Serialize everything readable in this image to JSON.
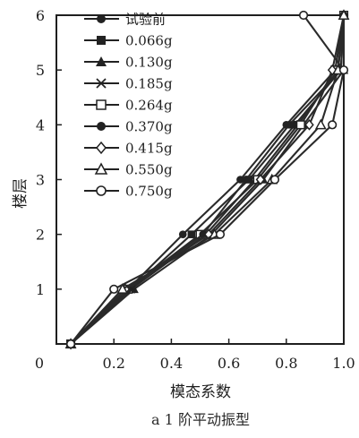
{
  "chart_data": {
    "type": "line",
    "title": "",
    "caption": "a 1 阶平动振型",
    "xlabel": "模态系数",
    "ylabel": "楼层",
    "xlim": [
      0,
      1.0
    ],
    "ylim": [
      0,
      6
    ],
    "xticks": [
      "0",
      "0.2",
      "0.4",
      "0.6",
      "0.8",
      "1.0"
    ],
    "yticks": [
      "1",
      "2",
      "3",
      "4",
      "5",
      "6"
    ],
    "legend_position": "top-left",
    "grid": false,
    "series": [
      {
        "name": "试验前",
        "marker": "filled-circle",
        "x": [
          0.05,
          0.25,
          0.44,
          0.64,
          0.8,
          0.97,
          1.0
        ],
        "y": [
          0,
          1,
          2,
          3,
          4,
          5,
          6
        ]
      },
      {
        "name": "0.066g",
        "marker": "filled-square",
        "x": [
          0.05,
          0.26,
          0.47,
          0.67,
          0.83,
          0.99,
          1.0
        ],
        "y": [
          0,
          1,
          2,
          3,
          4,
          5,
          6
        ]
      },
      {
        "name": "0.130g",
        "marker": "filled-triangle",
        "x": [
          0.05,
          0.27,
          0.54,
          0.72,
          0.86,
          1.0,
          1.0
        ],
        "y": [
          0,
          1,
          2,
          3,
          4,
          5,
          6
        ]
      },
      {
        "name": "0.185g",
        "marker": "x",
        "x": [
          0.05,
          0.26,
          0.52,
          0.69,
          0.84,
          0.98,
          1.0
        ],
        "y": [
          0,
          1,
          2,
          3,
          4,
          5,
          6
        ]
      },
      {
        "name": "0.264g",
        "marker": "open-square",
        "x": [
          0.05,
          0.25,
          0.5,
          0.7,
          0.85,
          0.97,
          1.0
        ],
        "y": [
          0,
          1,
          2,
          3,
          4,
          5,
          6
        ]
      },
      {
        "name": "0.370g",
        "marker": "filled-circle",
        "x": [
          0.05,
          0.25,
          0.51,
          0.66,
          0.81,
          0.99,
          1.0
        ],
        "y": [
          0,
          1,
          2,
          3,
          4,
          5,
          6
        ]
      },
      {
        "name": "0.415g",
        "marker": "open-diamond",
        "x": [
          0.05,
          0.24,
          0.53,
          0.71,
          0.88,
          0.96,
          1.0
        ],
        "y": [
          0,
          1,
          2,
          3,
          4,
          5,
          6
        ]
      },
      {
        "name": "0.550g",
        "marker": "open-triangle",
        "x": [
          0.05,
          0.23,
          0.55,
          0.75,
          0.92,
          0.98,
          1.0
        ],
        "y": [
          0,
          1,
          2,
          3,
          4,
          5,
          6
        ]
      },
      {
        "name": "0.750g",
        "marker": "open-circle",
        "x": [
          0.05,
          0.2,
          0.57,
          0.76,
          0.96,
          1.0,
          0.86
        ],
        "y": [
          0,
          1,
          2,
          3,
          4,
          5,
          6
        ]
      }
    ]
  }
}
